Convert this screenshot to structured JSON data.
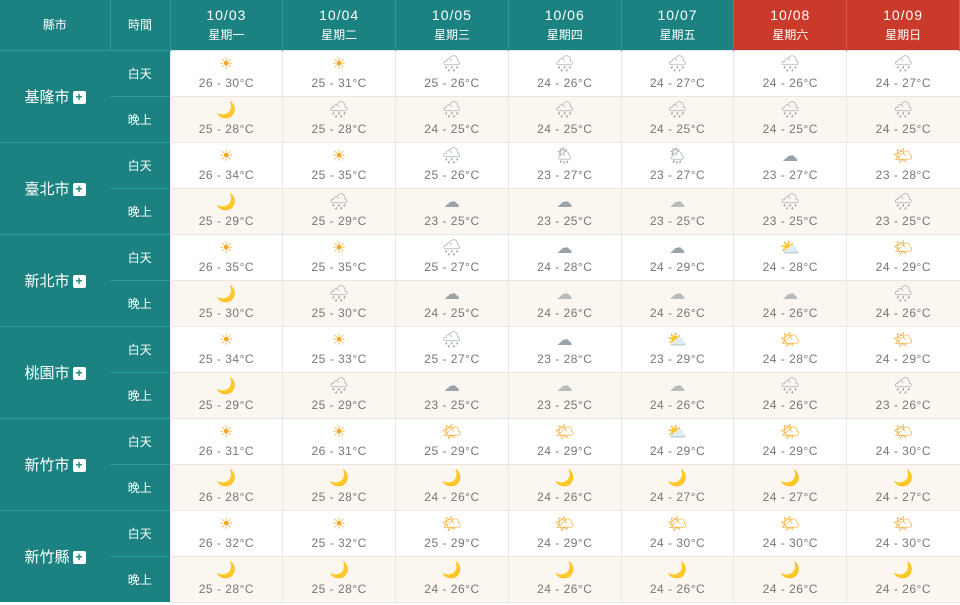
{
  "header": {
    "county_label": "縣市",
    "time_label": "時間",
    "days": [
      {
        "date": "10/03",
        "dow": "星期一",
        "weekend": false
      },
      {
        "date": "10/04",
        "dow": "星期二",
        "weekend": false
      },
      {
        "date": "10/05",
        "dow": "星期三",
        "weekend": false
      },
      {
        "date": "10/06",
        "dow": "星期四",
        "weekend": false
      },
      {
        "date": "10/07",
        "dow": "星期五",
        "weekend": false
      },
      {
        "date": "10/08",
        "dow": "星期六",
        "weekend": true
      },
      {
        "date": "10/09",
        "dow": "星期日",
        "weekend": true
      }
    ]
  },
  "time_of_day": {
    "day": "白天",
    "night": "晚上"
  },
  "icons": {
    "sunny": {
      "glyph": "☀",
      "color": "#f5a623"
    },
    "mostly-sun": {
      "glyph": "🌤",
      "color": "#f5a623"
    },
    "cloud": {
      "glyph": "☁",
      "color": "#9aa3a8"
    },
    "cloud-sun": {
      "glyph": "⛅",
      "color": "#b8bcbe"
    },
    "rain": {
      "glyph": "🌧",
      "color": "#9aa3a8"
    },
    "showers": {
      "glyph": "🌦",
      "color": "#9aa3a8"
    },
    "moon": {
      "glyph": "🌙",
      "color": "#f5a623"
    },
    "cloud-moon": {
      "glyph": "☁",
      "color": "#b8bcbe"
    },
    "night-rain": {
      "glyph": "🌧",
      "color": "#9aa3a8"
    }
  },
  "colors": {
    "teal": "#1c8181",
    "teal_border": "#2a9a9a",
    "weekend_red": "#c93a2b",
    "day_bg": "#ffffff",
    "night_bg": "#fbf6f0",
    "grid": "#e8e8e8",
    "text": "#777777"
  },
  "cities": [
    {
      "name": "基隆市",
      "day": [
        {
          "ico": "sunny",
          "lo": 26,
          "hi": 30
        },
        {
          "ico": "sunny",
          "lo": 25,
          "hi": 31
        },
        {
          "ico": "rain",
          "lo": 25,
          "hi": 26
        },
        {
          "ico": "rain",
          "lo": 24,
          "hi": 26
        },
        {
          "ico": "rain",
          "lo": 24,
          "hi": 27
        },
        {
          "ico": "rain",
          "lo": 24,
          "hi": 26
        },
        {
          "ico": "rain",
          "lo": 24,
          "hi": 27
        }
      ],
      "night": [
        {
          "ico": "moon",
          "lo": 25,
          "hi": 28
        },
        {
          "ico": "night-rain",
          "lo": 25,
          "hi": 28
        },
        {
          "ico": "night-rain",
          "lo": 24,
          "hi": 25
        },
        {
          "ico": "night-rain",
          "lo": 24,
          "hi": 25
        },
        {
          "ico": "night-rain",
          "lo": 24,
          "hi": 25
        },
        {
          "ico": "night-rain",
          "lo": 24,
          "hi": 25
        },
        {
          "ico": "night-rain",
          "lo": 24,
          "hi": 25
        }
      ]
    },
    {
      "name": "臺北市",
      "day": [
        {
          "ico": "sunny",
          "lo": 26,
          "hi": 34
        },
        {
          "ico": "sunny",
          "lo": 25,
          "hi": 35
        },
        {
          "ico": "rain",
          "lo": 25,
          "hi": 26
        },
        {
          "ico": "showers",
          "lo": 23,
          "hi": 27
        },
        {
          "ico": "showers",
          "lo": 23,
          "hi": 27
        },
        {
          "ico": "cloud",
          "lo": 23,
          "hi": 27
        },
        {
          "ico": "mostly-sun",
          "lo": 23,
          "hi": 28
        }
      ],
      "night": [
        {
          "ico": "moon",
          "lo": 25,
          "hi": 29
        },
        {
          "ico": "night-rain",
          "lo": 25,
          "hi": 29
        },
        {
          "ico": "cloud",
          "lo": 23,
          "hi": 25
        },
        {
          "ico": "cloud",
          "lo": 23,
          "hi": 25
        },
        {
          "ico": "cloud-moon",
          "lo": 23,
          "hi": 25
        },
        {
          "ico": "night-rain",
          "lo": 23,
          "hi": 25
        },
        {
          "ico": "night-rain",
          "lo": 23,
          "hi": 25
        }
      ]
    },
    {
      "name": "新北市",
      "day": [
        {
          "ico": "sunny",
          "lo": 26,
          "hi": 35
        },
        {
          "ico": "sunny",
          "lo": 25,
          "hi": 35
        },
        {
          "ico": "rain",
          "lo": 25,
          "hi": 27
        },
        {
          "ico": "cloud",
          "lo": 24,
          "hi": 28
        },
        {
          "ico": "cloud",
          "lo": 24,
          "hi": 29
        },
        {
          "ico": "cloud-sun",
          "lo": 24,
          "hi": 28
        },
        {
          "ico": "mostly-sun",
          "lo": 24,
          "hi": 29
        }
      ],
      "night": [
        {
          "ico": "moon",
          "lo": 25,
          "hi": 30
        },
        {
          "ico": "night-rain",
          "lo": 25,
          "hi": 30
        },
        {
          "ico": "cloud",
          "lo": 24,
          "hi": 25
        },
        {
          "ico": "cloud-moon",
          "lo": 24,
          "hi": 26
        },
        {
          "ico": "cloud-moon",
          "lo": 24,
          "hi": 26
        },
        {
          "ico": "cloud-moon",
          "lo": 24,
          "hi": 26
        },
        {
          "ico": "night-rain",
          "lo": 24,
          "hi": 26
        }
      ]
    },
    {
      "name": "桃園市",
      "day": [
        {
          "ico": "sunny",
          "lo": 25,
          "hi": 34
        },
        {
          "ico": "sunny",
          "lo": 25,
          "hi": 33
        },
        {
          "ico": "rain",
          "lo": 25,
          "hi": 27
        },
        {
          "ico": "cloud",
          "lo": 23,
          "hi": 28
        },
        {
          "ico": "cloud-sun",
          "lo": 23,
          "hi": 29
        },
        {
          "ico": "mostly-sun",
          "lo": 24,
          "hi": 28
        },
        {
          "ico": "mostly-sun",
          "lo": 24,
          "hi": 29
        }
      ],
      "night": [
        {
          "ico": "moon",
          "lo": 25,
          "hi": 29
        },
        {
          "ico": "night-rain",
          "lo": 25,
          "hi": 29
        },
        {
          "ico": "cloud",
          "lo": 23,
          "hi": 25
        },
        {
          "ico": "cloud-moon",
          "lo": 23,
          "hi": 25
        },
        {
          "ico": "cloud-moon",
          "lo": 24,
          "hi": 26
        },
        {
          "ico": "night-rain",
          "lo": 24,
          "hi": 26
        },
        {
          "ico": "night-rain",
          "lo": 23,
          "hi": 26
        }
      ]
    },
    {
      "name": "新竹市",
      "day": [
        {
          "ico": "sunny",
          "lo": 26,
          "hi": 31
        },
        {
          "ico": "sunny",
          "lo": 26,
          "hi": 31
        },
        {
          "ico": "mostly-sun",
          "lo": 25,
          "hi": 29
        },
        {
          "ico": "mostly-sun",
          "lo": 24,
          "hi": 29
        },
        {
          "ico": "cloud-sun",
          "lo": 24,
          "hi": 29
        },
        {
          "ico": "mostly-sun",
          "lo": 24,
          "hi": 29
        },
        {
          "ico": "mostly-sun",
          "lo": 24,
          "hi": 30
        }
      ],
      "night": [
        {
          "ico": "moon",
          "lo": 26,
          "hi": 28
        },
        {
          "ico": "moon",
          "lo": 25,
          "hi": 28
        },
        {
          "ico": "moon",
          "lo": 24,
          "hi": 26
        },
        {
          "ico": "moon",
          "lo": 24,
          "hi": 26
        },
        {
          "ico": "moon",
          "lo": 24,
          "hi": 27
        },
        {
          "ico": "moon",
          "lo": 24,
          "hi": 27
        },
        {
          "ico": "moon",
          "lo": 24,
          "hi": 27
        }
      ]
    },
    {
      "name": "新竹縣",
      "day": [
        {
          "ico": "sunny",
          "lo": 26,
          "hi": 32
        },
        {
          "ico": "sunny",
          "lo": 25,
          "hi": 32
        },
        {
          "ico": "mostly-sun",
          "lo": 25,
          "hi": 29
        },
        {
          "ico": "mostly-sun",
          "lo": 24,
          "hi": 29
        },
        {
          "ico": "mostly-sun",
          "lo": 24,
          "hi": 30
        },
        {
          "ico": "mostly-sun",
          "lo": 24,
          "hi": 30
        },
        {
          "ico": "mostly-sun",
          "lo": 24,
          "hi": 30
        }
      ],
      "night": [
        {
          "ico": "moon",
          "lo": 25,
          "hi": 28
        },
        {
          "ico": "moon",
          "lo": 25,
          "hi": 28
        },
        {
          "ico": "moon",
          "lo": 24,
          "hi": 26
        },
        {
          "ico": "moon",
          "lo": 24,
          "hi": 26
        },
        {
          "ico": "moon",
          "lo": 24,
          "hi": 26
        },
        {
          "ico": "moon",
          "lo": 24,
          "hi": 26
        },
        {
          "ico": "moon",
          "lo": 24,
          "hi": 26
        }
      ]
    }
  ]
}
